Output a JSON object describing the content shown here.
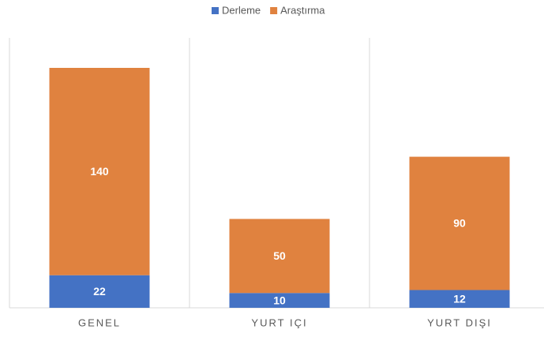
{
  "chart_data": {
    "type": "stacked_bar",
    "categories": [
      "GENEL",
      "YURT IÇI",
      "YURT DIŞI"
    ],
    "series": [
      {
        "name": "Derleme",
        "color": "#4472c4",
        "values": [
          22,
          10,
          12
        ]
      },
      {
        "name": "Araştırma",
        "color": "#e0823f",
        "values": [
          140,
          50,
          90
        ]
      }
    ],
    "legend": "top",
    "data_labels": true
  }
}
